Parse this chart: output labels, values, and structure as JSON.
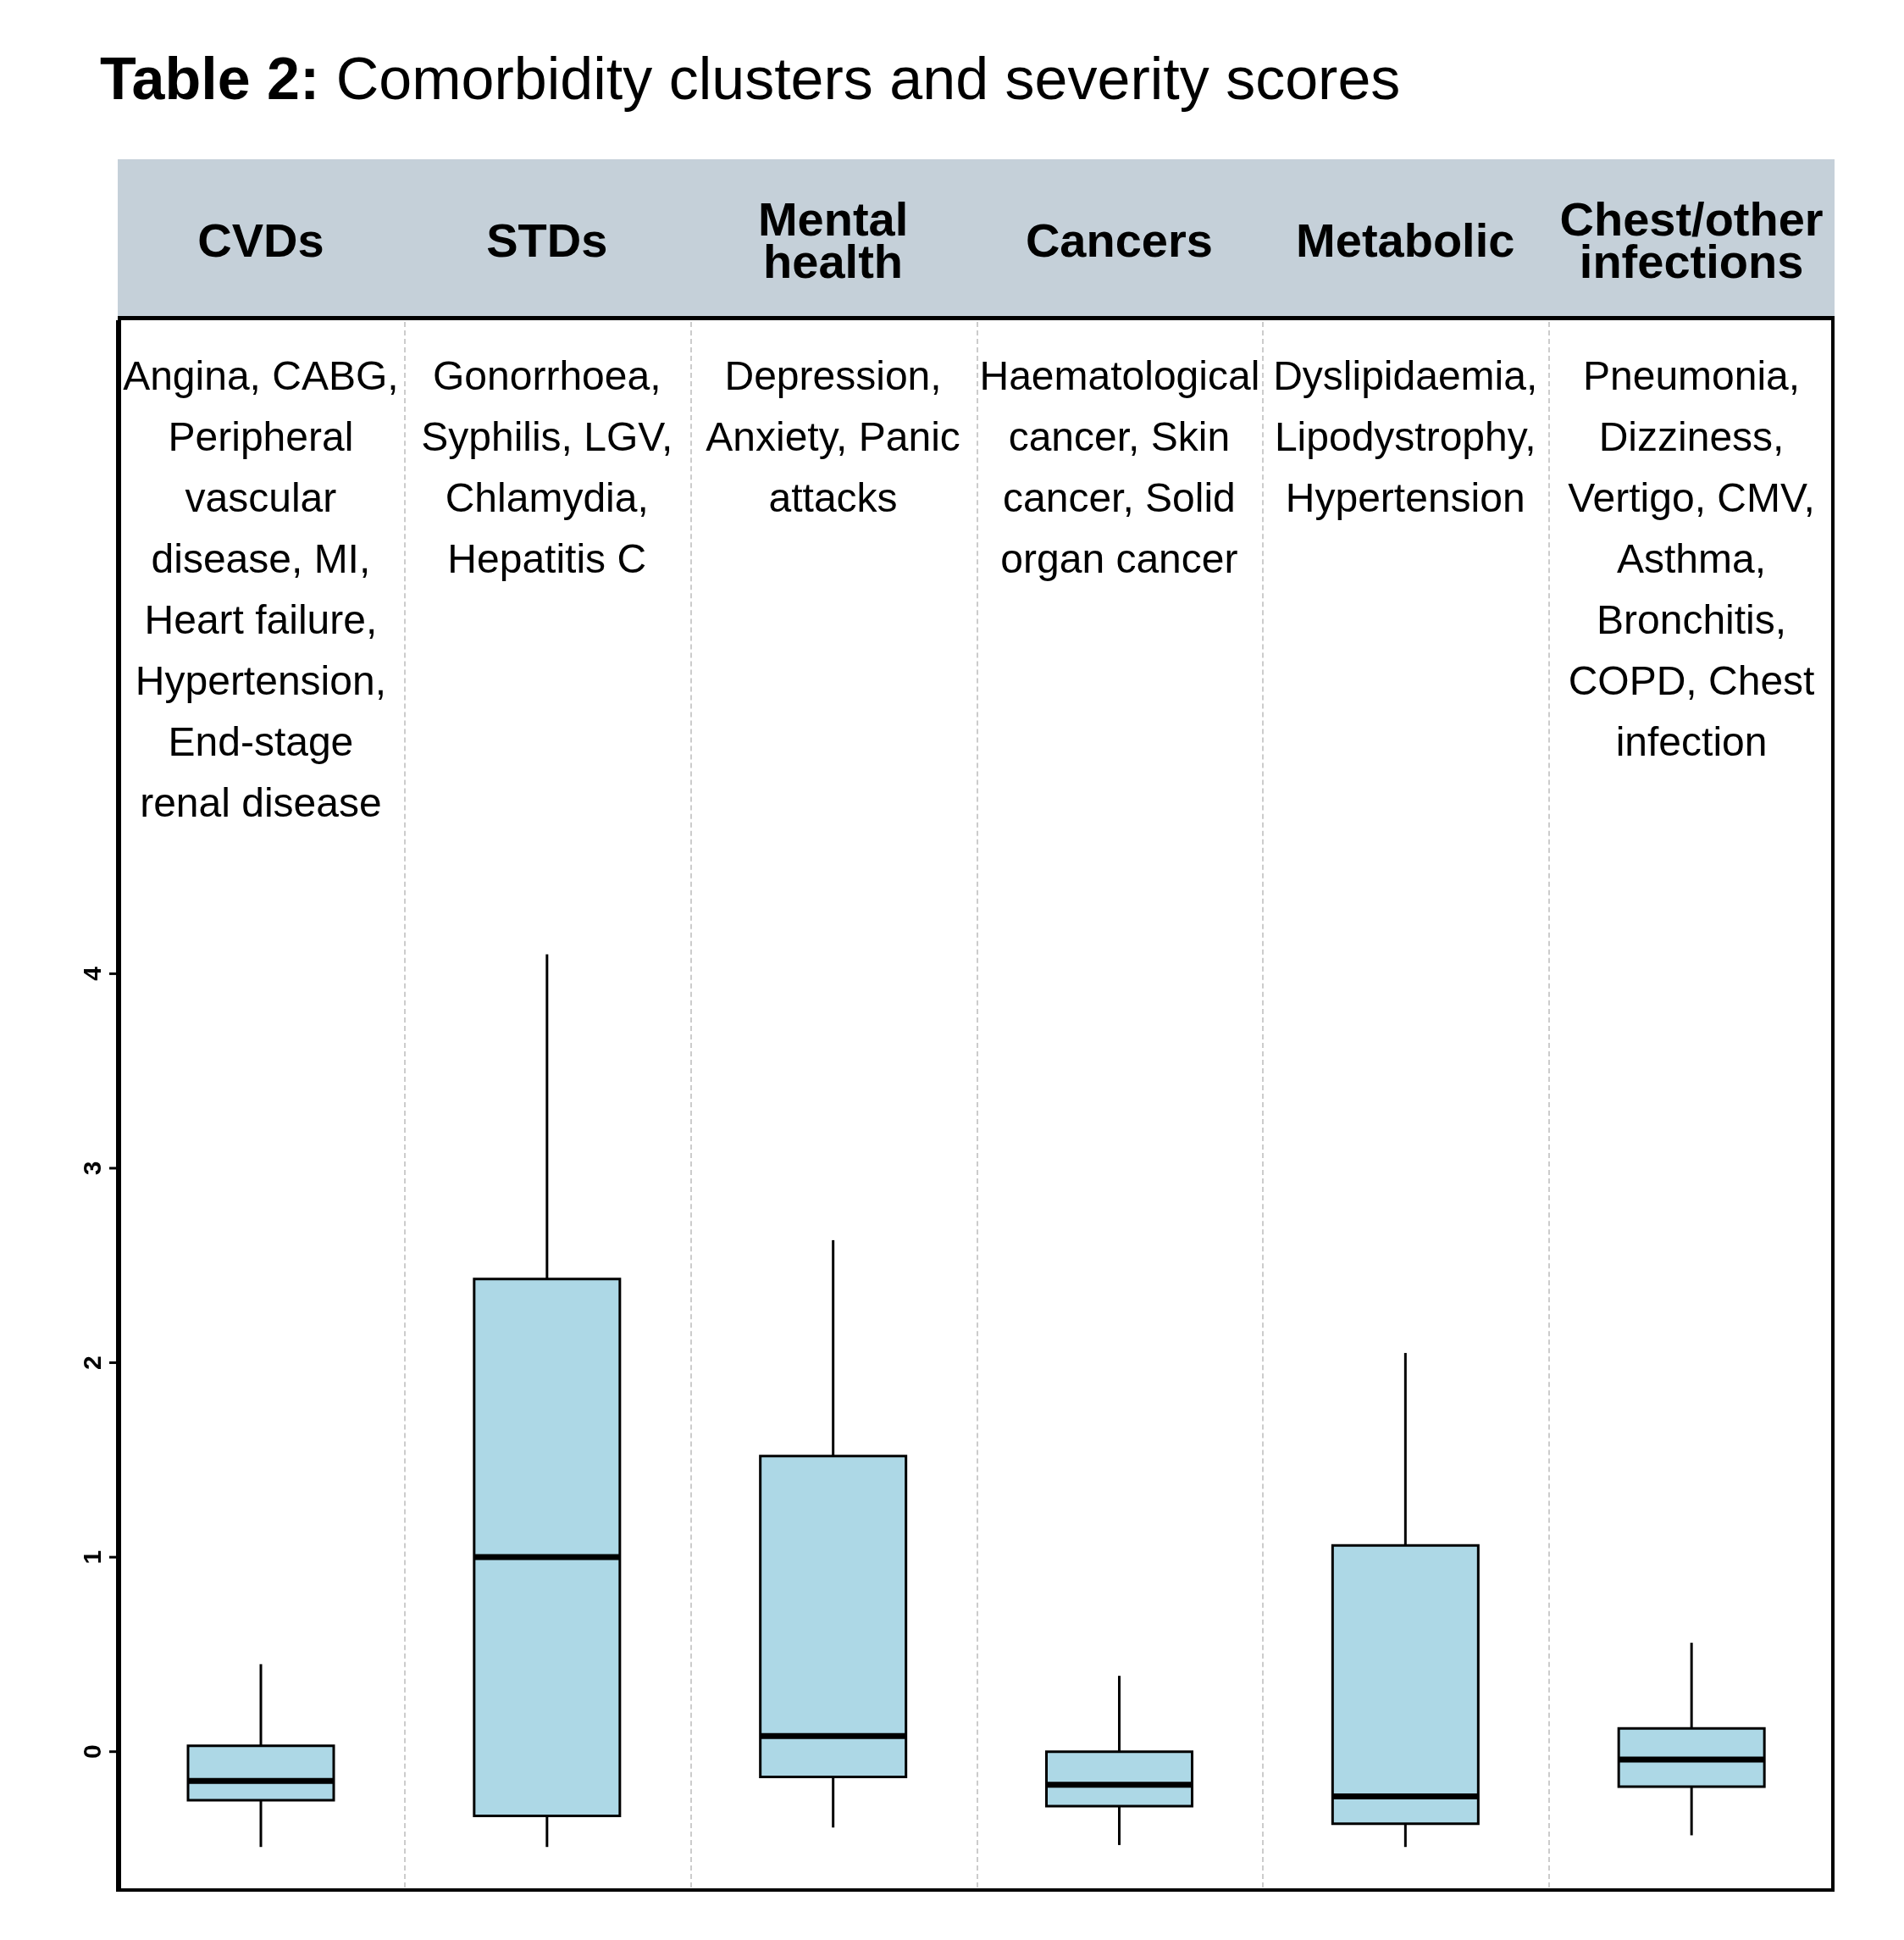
{
  "chart_data": {
    "type": "box",
    "title": "Table 2: Comorbidity clusters and severity scores",
    "categories": [
      "CVDs",
      "STDs",
      "Mental health",
      "Cancers",
      "Metabolic",
      "Chest/other infections"
    ],
    "annotations": [
      "Angina, CABG, Peripheral vascular disease, MI, Heart failure, Hypertension, End-stage renal disease",
      "Gonorrhoea, Syphilis, LGV, Chlamydia, Hepatitis C",
      "Depression, Anxiety, Panic attacks",
      "Haematological cancer, Skin cancer, Solid organ cancer",
      "Dyslipidaemia, Lipodystrophy, Hypertension",
      "Pneumonia, Dizziness, Vertigo, CMV, Asthma, Bronchitis, COPD, Chest infection"
    ],
    "boxes": [
      {
        "low": -0.49,
        "q1": -0.25,
        "median": -0.15,
        "q3": 0.03,
        "high": 0.45
      },
      {
        "low": -0.49,
        "q1": -0.33,
        "median": 1.0,
        "q3": 2.43,
        "high": 4.1
      },
      {
        "low": -0.39,
        "q1": -0.13,
        "median": 0.08,
        "q3": 1.52,
        "high": 2.63
      },
      {
        "low": -0.48,
        "q1": -0.28,
        "median": -0.17,
        "q3": 0.0,
        "high": 0.39
      },
      {
        "low": -0.49,
        "q1": -0.37,
        "median": -0.23,
        "q3": 1.06,
        "high": 2.05
      },
      {
        "low": -0.43,
        "q1": -0.18,
        "median": -0.04,
        "q3": 0.12,
        "high": 0.56
      }
    ],
    "color": "#add8e6",
    "ylim": [
      -0.72,
      7.36
    ],
    "yticks": [
      0,
      1,
      2,
      3,
      4
    ]
  }
}
